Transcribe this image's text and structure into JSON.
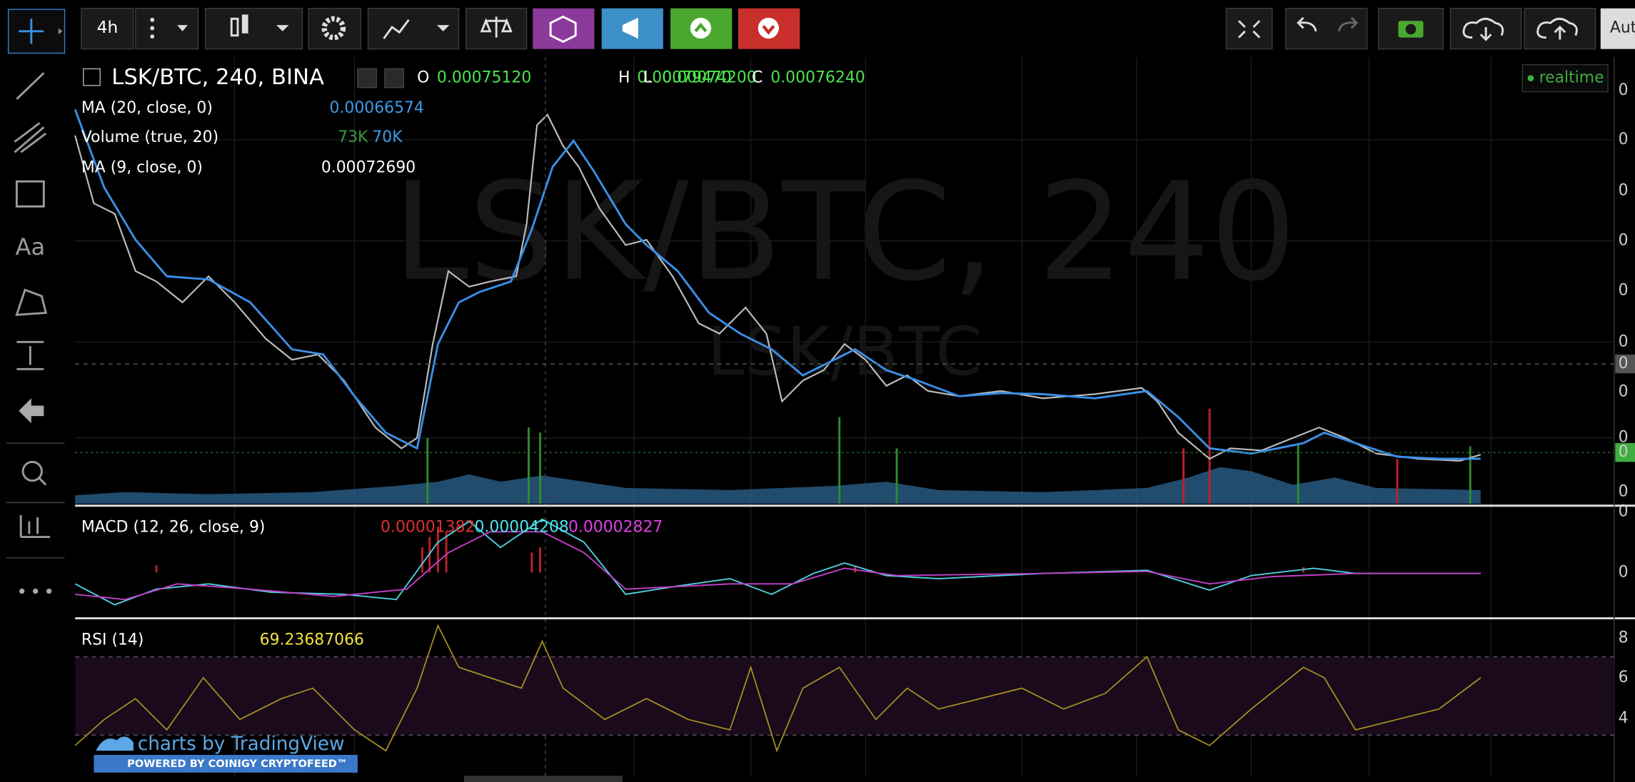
{
  "toolbar": {
    "interval": "4h",
    "auto_label": "Aut"
  },
  "sidebar": {
    "text_tool": "Aa"
  },
  "main_pane": {
    "symbol": "LSK/BTC, 240, BINA",
    "ohlc": [
      {
        "key": "O",
        "value": "0.00075120"
      },
      {
        "key": "H",
        "value": "0.00079470"
      },
      {
        "key": "L",
        "value": "0.00074200"
      },
      {
        "key": "C",
        "value": "0.00076240"
      }
    ],
    "status": "realtime",
    "watermark": "LSK/BTC, 240",
    "watermark_sub": "LSK/BTC",
    "indicators": [
      {
        "name": "MA (20, close, 0)",
        "values": [
          "0.00066574"
        ]
      },
      {
        "name": "Volume (true, 20)",
        "values": [
          "73K",
          "70K"
        ]
      },
      {
        "name": "MA (9, close, 0)",
        "values": [
          "0.00072690"
        ]
      }
    ],
    "axis_labels": [
      "0",
      "0",
      "0",
      "0",
      "0",
      "0",
      "0",
      "0",
      "0",
      "0",
      "0"
    ]
  },
  "macd_pane": {
    "name": "MACD (12, 26, close, 9)",
    "values": [
      "0.00001382",
      "0.00004208",
      "0.00002827"
    ],
    "axis_labels": [
      "0",
      "0"
    ]
  },
  "rsi_pane": {
    "name": "RSI (14)",
    "values": [
      "69.23687066"
    ],
    "axis_labels": [
      "8",
      "6",
      "4"
    ]
  },
  "branding": {
    "tradingview": "charts by TradingView",
    "coinigy": "POWERED BY COINIGY CRYPTOFEED™"
  }
}
